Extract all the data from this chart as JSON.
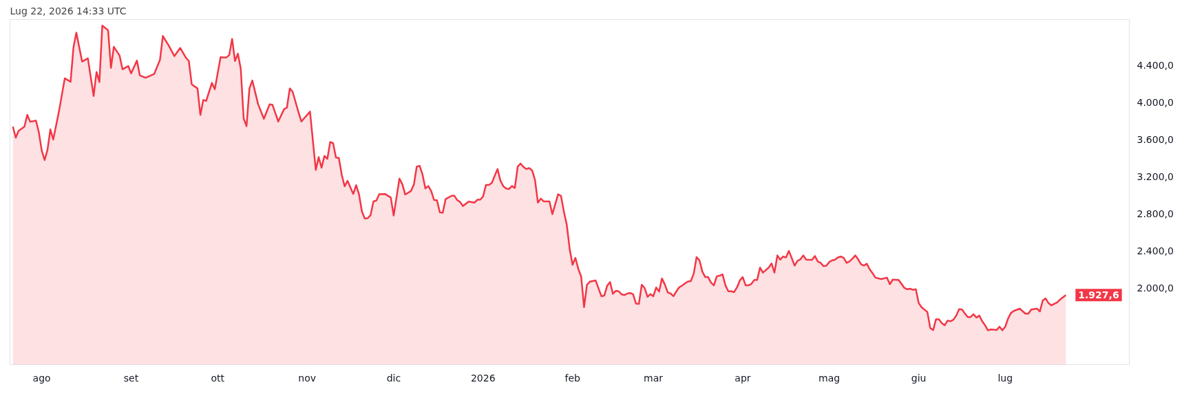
{
  "chart_data": {
    "type": "area",
    "title": "Lug 22, 2026 14:33 UTC",
    "x": [
      "2025-07-22",
      "2025-07-23",
      "2025-07-24",
      "2025-07-26",
      "2025-07-27",
      "2025-07-28",
      "2025-07-30",
      "2025-07-31",
      "2025-08-01",
      "2025-08-02",
      "2025-08-03",
      "2025-08-04",
      "2025-08-05",
      "2025-08-07",
      "2025-08-09",
      "2025-08-11",
      "2025-08-12",
      "2025-08-13",
      "2025-08-15",
      "2025-08-17",
      "2025-08-19",
      "2025-08-20",
      "2025-08-21",
      "2025-08-22",
      "2025-08-24",
      "2025-08-25",
      "2025-08-26",
      "2025-08-28",
      "2025-08-29",
      "2025-08-31",
      "2025-09-01",
      "2025-09-03",
      "2025-09-04",
      "2025-09-06",
      "2025-09-09",
      "2025-09-11",
      "2025-09-12",
      "2025-09-14",
      "2025-09-16",
      "2025-09-18",
      "2025-09-20",
      "2025-09-21",
      "2025-09-22",
      "2025-09-24",
      "2025-09-25",
      "2025-09-26",
      "2025-09-27",
      "2025-09-29",
      "2025-09-30",
      "2025-10-02",
      "2025-10-04",
      "2025-10-05",
      "2025-10-06",
      "2025-10-07",
      "2025-10-08",
      "2025-10-09",
      "2025-10-10",
      "2025-10-11",
      "2025-10-12",
      "2025-10-13",
      "2025-10-15",
      "2025-10-17",
      "2025-10-19",
      "2025-10-20",
      "2025-10-22",
      "2025-10-24",
      "2025-10-25",
      "2025-10-26",
      "2025-10-27",
      "2025-10-29",
      "2025-10-30",
      "2025-11-02",
      "2025-11-04",
      "2025-11-05",
      "2025-11-06",
      "2025-11-07",
      "2025-11-08",
      "2025-11-09",
      "2025-11-10",
      "2025-11-11",
      "2025-11-12",
      "2025-11-13",
      "2025-11-14",
      "2025-11-15",
      "2025-11-17",
      "2025-11-18",
      "2025-11-19",
      "2025-11-20",
      "2025-11-21",
      "2025-11-22",
      "2025-11-23",
      "2025-11-24",
      "2025-11-25",
      "2025-11-26",
      "2025-11-28",
      "2025-11-30",
      "2025-12-01",
      "2025-12-03",
      "2025-12-04",
      "2025-12-05",
      "2025-12-07",
      "2025-12-08",
      "2025-12-09",
      "2025-12-10",
      "2025-12-11",
      "2025-12-12",
      "2025-12-13",
      "2025-12-14",
      "2025-12-15",
      "2025-12-16",
      "2025-12-17",
      "2025-12-18",
      "2025-12-19",
      "2025-12-21",
      "2025-12-22",
      "2025-12-23",
      "2025-12-24",
      "2025-12-25",
      "2025-12-27",
      "2025-12-29",
      "2025-12-30",
      "2025-12-31",
      "2026-01-01",
      "2026-01-02",
      "2026-01-03",
      "2026-01-04",
      "2026-01-05",
      "2026-01-06",
      "2026-01-07",
      "2026-01-08",
      "2026-01-09",
      "2026-01-10",
      "2026-01-11",
      "2026-01-12",
      "2026-01-13",
      "2026-01-14",
      "2026-01-15",
      "2026-01-16",
      "2026-01-17",
      "2026-01-18",
      "2026-01-19",
      "2026-01-20",
      "2026-01-21",
      "2026-01-22",
      "2026-01-24",
      "2026-01-25",
      "2026-01-27",
      "2026-01-28",
      "2026-01-29",
      "2026-01-30",
      "2026-01-31",
      "2026-02-01",
      "2026-02-02",
      "2026-02-03",
      "2026-02-04",
      "2026-02-05",
      "2026-02-06",
      "2026-02-07",
      "2026-02-09",
      "2026-02-11",
      "2026-02-12",
      "2026-02-13",
      "2026-02-14",
      "2026-02-15",
      "2026-02-16",
      "2026-02-17",
      "2026-02-18",
      "2026-02-19",
      "2026-02-20",
      "2026-02-21",
      "2026-02-22",
      "2026-02-23",
      "2026-02-24",
      "2026-02-25",
      "2026-02-26",
      "2026-02-27",
      "2026-02-28",
      "2026-03-01",
      "2026-03-02",
      "2026-03-03",
      "2026-03-04",
      "2026-03-05",
      "2026-03-06",
      "2026-03-07",
      "2026-03-08",
      "2026-03-09",
      "2026-03-10",
      "2026-03-11",
      "2026-03-12",
      "2026-03-13",
      "2026-03-14",
      "2026-03-15",
      "2026-03-16",
      "2026-03-17",
      "2026-03-18",
      "2026-03-19",
      "2026-03-20",
      "2026-03-21",
      "2026-03-22",
      "2026-03-23",
      "2026-03-24",
      "2026-03-25",
      "2026-03-26",
      "2026-03-27",
      "2026-03-28",
      "2026-03-29",
      "2026-03-30",
      "2026-03-31",
      "2026-04-01",
      "2026-04-02",
      "2026-04-03",
      "2026-04-04",
      "2026-04-05",
      "2026-04-06",
      "2026-04-07",
      "2026-04-08",
      "2026-04-10",
      "2026-04-11",
      "2026-04-12",
      "2026-04-13",
      "2026-04-14",
      "2026-04-15",
      "2026-04-16",
      "2026-04-17",
      "2026-04-18",
      "2026-04-19",
      "2026-04-20",
      "2026-04-21",
      "2026-04-22",
      "2026-04-23",
      "2026-04-25",
      "2026-04-26",
      "2026-04-27",
      "2026-04-28",
      "2026-04-29",
      "2026-04-30",
      "2026-05-01",
      "2026-05-02",
      "2026-05-03",
      "2026-05-04",
      "2026-05-05",
      "2026-05-06",
      "2026-05-07",
      "2026-05-08",
      "2026-05-09",
      "2026-05-10",
      "2026-05-11",
      "2026-05-12",
      "2026-05-13",
      "2026-05-14",
      "2026-05-15",
      "2026-05-16",
      "2026-05-17",
      "2026-05-19",
      "2026-05-21",
      "2026-05-22",
      "2026-05-23",
      "2026-05-25",
      "2026-05-26",
      "2026-05-27",
      "2026-05-28",
      "2026-05-29",
      "2026-05-30",
      "2026-05-31",
      "2026-06-01",
      "2026-06-02",
      "2026-06-04",
      "2026-06-05",
      "2026-06-06",
      "2026-06-07",
      "2026-06-08",
      "2026-06-09",
      "2026-06-10",
      "2026-06-11",
      "2026-06-12",
      "2026-06-13",
      "2026-06-14",
      "2026-06-15",
      "2026-06-16",
      "2026-06-17",
      "2026-06-18",
      "2026-06-19",
      "2026-06-20",
      "2026-06-21",
      "2026-06-22",
      "2026-06-23",
      "2026-06-24",
      "2026-06-25",
      "2026-06-26",
      "2026-06-28",
      "2026-06-29",
      "2026-06-30",
      "2026-07-01",
      "2026-07-02",
      "2026-07-03",
      "2026-07-04",
      "2026-07-06",
      "2026-07-08",
      "2026-07-09",
      "2026-07-10",
      "2026-07-12",
      "2026-07-13",
      "2026-07-14",
      "2026-07-15",
      "2026-07-16",
      "2026-07-17",
      "2026-07-19",
      "2026-07-20",
      "2026-07-22"
    ],
    "series": [
      {
        "color": "#f23645",
        "values": [
          3740,
          3622,
          3696,
          3740,
          3867,
          3793,
          3805,
          3681,
          3484,
          3381,
          3490,
          3711,
          3602,
          3908,
          4261,
          4223,
          4591,
          4753,
          4441,
          4476,
          4070,
          4329,
          4220,
          4829,
          4779,
          4373,
          4600,
          4505,
          4358,
          4393,
          4314,
          4452,
          4293,
          4267,
          4308,
          4461,
          4717,
          4614,
          4500,
          4588,
          4482,
          4447,
          4196,
          4152,
          3867,
          4028,
          4017,
          4211,
          4143,
          4488,
          4485,
          4511,
          4685,
          4447,
          4526,
          4364,
          3828,
          3746,
          4152,
          4237,
          3984,
          3825,
          3981,
          3975,
          3796,
          3928,
          3946,
          4152,
          4114,
          3896,
          3796,
          3902,
          3275,
          3413,
          3298,
          3425,
          3393,
          3575,
          3563,
          3407,
          3404,
          3222,
          3098,
          3157,
          3016,
          3110,
          3010,
          2827,
          2751,
          2754,
          2789,
          2936,
          2945,
          3013,
          3016,
          2977,
          2783,
          3181,
          3122,
          3010,
          3048,
          3116,
          3310,
          3319,
          3225,
          3075,
          3101,
          3048,
          2951,
          2948,
          2818,
          2813,
          2960,
          2995,
          2998,
          2951,
          2930,
          2886,
          2933,
          2922,
          2954,
          2954,
          2989,
          3113,
          3113,
          3134,
          3210,
          3284,
          3160,
          3098,
          3075,
          3069,
          3101,
          3081,
          3310,
          3343,
          3307,
          3284,
          3295,
          3269,
          3166,
          2922,
          2966,
          2936,
          2936,
          2798,
          3013,
          2995,
          2827,
          2686,
          2427,
          2253,
          2327,
          2209,
          2127,
          1797,
          2038,
          2071,
          2085,
          1915,
          1921,
          2027,
          2068,
          1941,
          1973,
          1968,
          1935,
          1927,
          1944,
          1950,
          1935,
          1835,
          1832,
          2038,
          2003,
          1909,
          1938,
          1915,
          2009,
          1965,
          2106,
          2041,
          1956,
          1944,
          1915,
          1968,
          2012,
          2029,
          2053,
          2074,
          2077,
          2156,
          2336,
          2303,
          2180,
          2121,
          2121,
          2062,
          2032,
          2130,
          2136,
          2150,
          2032,
          1968,
          1968,
          1959,
          2009,
          2085,
          2121,
          2032,
          2032,
          2047,
          2091,
          2091,
          2223,
          2169,
          2223,
          2268,
          2169,
          2354,
          2309,
          2342,
          2333,
          2402,
          2324,
          2244,
          2297,
          2312,
          2354,
          2309,
          2306,
          2348,
          2289,
          2274,
          2238,
          2244,
          2283,
          2301,
          2309,
          2333,
          2342,
          2327,
          2274,
          2289,
          2318,
          2354,
          2312,
          2259,
          2244,
          2265,
          2205,
          2163,
          2115,
          2100,
          2115,
          2044,
          2094,
          2091,
          2050,
          2005,
          1990,
          1996,
          1984,
          1990,
          1841,
          1796,
          1745,
          1572,
          1551,
          1667,
          1667,
          1625,
          1602,
          1652,
          1646,
          1661,
          1706,
          1775,
          1772,
          1730,
          1691,
          1691,
          1721,
          1685,
          1706,
          1646,
          1602,
          1548,
          1557,
          1551,
          1587,
          1548,
          1587,
          1676,
          1736,
          1757,
          1781,
          1727,
          1727,
          1772,
          1781,
          1751,
          1870,
          1891,
          1840,
          1817,
          1849,
          1879,
          1927.6
        ]
      }
    ],
    "xlim": [
      "2025-07-21",
      "2026-08-13"
    ],
    "xticks": [
      {
        "value": "2025-08-01",
        "label": "ago"
      },
      {
        "value": "2025-09-01",
        "label": "set"
      },
      {
        "value": "2025-10-01",
        "label": "ott"
      },
      {
        "value": "2025-11-01",
        "label": "nov"
      },
      {
        "value": "2025-12-01",
        "label": "dic"
      },
      {
        "value": "2026-01-01",
        "label": "2026"
      },
      {
        "value": "2026-02-01",
        "label": "feb"
      },
      {
        "value": "2026-03-01",
        "label": "mar"
      },
      {
        "value": "2026-04-01",
        "label": "apr"
      },
      {
        "value": "2026-05-01",
        "label": "mag"
      },
      {
        "value": "2026-06-01",
        "label": "giu"
      },
      {
        "value": "2026-07-01",
        "label": "lug"
      }
    ],
    "ylim": [
      1178,
      4893
    ],
    "yticks": [
      {
        "value": 2000,
        "label": "2.000,0"
      },
      {
        "value": 2400,
        "label": "2.400,0"
      },
      {
        "value": 2800,
        "label": "2.800,0"
      },
      {
        "value": 3200,
        "label": "3.200,0"
      },
      {
        "value": 3600,
        "label": "3.600,0"
      },
      {
        "value": 4000,
        "label": "4.000,0"
      },
      {
        "value": 4400,
        "label": "4.400,0"
      }
    ],
    "grid": false,
    "annotations": [
      {
        "text": "1.927,6",
        "x": "2026-07-22",
        "y": 1927.6
      }
    ]
  }
}
